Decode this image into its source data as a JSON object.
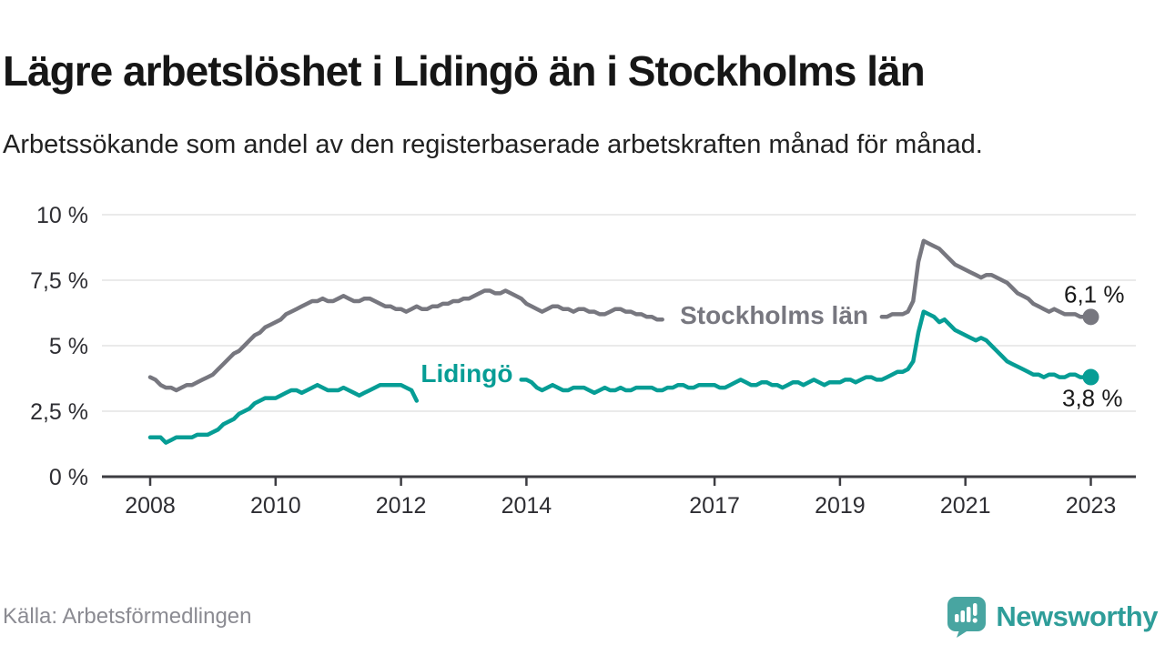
{
  "page": {
    "title": "Lägre arbetslöshet i Lidingö än i Stockholms län",
    "subtitle": "Arbetssökande som andel av den registerbaserade arbetskraften månad för månad.",
    "source": "Källa: Arbetsförmedlingen",
    "brand": "Newsworthy"
  },
  "colors": {
    "stockholm_line": "#77777f",
    "lidingo_line": "#069d95",
    "gridline": "#e3e3e3",
    "axis": "#3d3d42",
    "tick_text": "#2e2e33",
    "end_label_text": "#191919",
    "logo_teal": "#48a5a1",
    "logo_text_teal": "#2e9d99"
  },
  "chart_data": {
    "type": "line",
    "title": "Lägre arbetslöshet i Lidingö än i Stockholms län",
    "subtitle": "Arbetssökande som andel av den registerbaserade arbetskraften månad för månad.",
    "x_unit": "year-month",
    "x_start": 2008.0,
    "x_step": 0.0833333,
    "xlim": [
      2007.25,
      2023.75
    ],
    "ylim": [
      0,
      10
    ],
    "grid": true,
    "x_ticks": [
      2008,
      2010,
      2012,
      2014,
      2017,
      2019,
      2021,
      2023
    ],
    "x_tick_labels": [
      "2008",
      "2010",
      "2012",
      "2014",
      "2017",
      "2019",
      "2021",
      "2023"
    ],
    "y_ticks": [
      0,
      2.5,
      5,
      7.5,
      10
    ],
    "y_tick_labels": [
      "0 %",
      "2,5 %",
      "5 %",
      "7,5 %",
      "10 %"
    ],
    "series": [
      {
        "name": "Stockholms län",
        "color": "#77777f",
        "end_value_label": "6,1 %",
        "end_label_dx": 37,
        "end_label_dy": -16,
        "inline_label": {
          "text": "Stockholms län",
          "x": 2017.95,
          "y": 6.15
        },
        "label_gap": [
          2016.23,
          2019.6
        ],
        "values": [
          3.8,
          3.7,
          3.5,
          3.4,
          3.4,
          3.3,
          3.4,
          3.5,
          3.5,
          3.6,
          3.7,
          3.8,
          3.9,
          4.1,
          4.3,
          4.5,
          4.7,
          4.8,
          5.0,
          5.2,
          5.4,
          5.5,
          5.7,
          5.8,
          5.9,
          6.0,
          6.2,
          6.3,
          6.4,
          6.5,
          6.6,
          6.7,
          6.7,
          6.8,
          6.7,
          6.7,
          6.8,
          6.9,
          6.8,
          6.7,
          6.7,
          6.8,
          6.8,
          6.7,
          6.6,
          6.5,
          6.5,
          6.4,
          6.4,
          6.3,
          6.4,
          6.5,
          6.4,
          6.4,
          6.5,
          6.5,
          6.6,
          6.6,
          6.7,
          6.7,
          6.8,
          6.8,
          6.9,
          7.0,
          7.1,
          7.1,
          7.0,
          7.0,
          7.1,
          7.0,
          6.9,
          6.8,
          6.6,
          6.5,
          6.4,
          6.3,
          6.4,
          6.5,
          6.5,
          6.4,
          6.4,
          6.3,
          6.4,
          6.4,
          6.3,
          6.3,
          6.2,
          6.2,
          6.3,
          6.4,
          6.4,
          6.3,
          6.3,
          6.2,
          6.2,
          6.1,
          6.1,
          6.0,
          6.0,
          6.1,
          6.1,
          6.2,
          6.2,
          6.2,
          6.1,
          6.1,
          6.0,
          6.1,
          6.1,
          6.2,
          6.2,
          6.1,
          6.2,
          6.3,
          6.3,
          6.2,
          6.2,
          6.1,
          6.1,
          6.2,
          6.2,
          6.1,
          6.1,
          6.0,
          6.1,
          6.2,
          6.2,
          6.1,
          6.1,
          6.0,
          6.1,
          6.1,
          6.1,
          6.1,
          6.2,
          6.1,
          6.1,
          6.2,
          6.2,
          6.2,
          6.1,
          6.1,
          6.2,
          6.2,
          6.2,
          6.3,
          6.7,
          8.2,
          9.0,
          8.9,
          8.8,
          8.7,
          8.5,
          8.3,
          8.1,
          8.0,
          7.9,
          7.8,
          7.7,
          7.6,
          7.7,
          7.7,
          7.6,
          7.5,
          7.4,
          7.2,
          7.0,
          6.9,
          6.8,
          6.6,
          6.5,
          6.4,
          6.3,
          6.4,
          6.3,
          6.2,
          6.2,
          6.2,
          6.1,
          6.1,
          6.1
        ]
      },
      {
        "name": "Lidingö",
        "color": "#069d95",
        "end_value_label": "3,8 %",
        "end_label_dx": 35,
        "end_label_dy": 32,
        "inline_label": {
          "text": "Lidingö",
          "x": 2013.05,
          "y": 3.92
        },
        "label_gap": [
          2012.3,
          2013.88
        ],
        "values": [
          1.5,
          1.5,
          1.5,
          1.3,
          1.4,
          1.5,
          1.5,
          1.5,
          1.5,
          1.6,
          1.6,
          1.6,
          1.7,
          1.8,
          2.0,
          2.1,
          2.2,
          2.4,
          2.5,
          2.6,
          2.8,
          2.9,
          3.0,
          3.0,
          3.0,
          3.1,
          3.2,
          3.3,
          3.3,
          3.2,
          3.3,
          3.4,
          3.5,
          3.4,
          3.3,
          3.3,
          3.3,
          3.4,
          3.3,
          3.2,
          3.1,
          3.2,
          3.3,
          3.4,
          3.5,
          3.5,
          3.5,
          3.5,
          3.5,
          3.4,
          3.3,
          2.9,
          3.0,
          3.1,
          3.2,
          3.3,
          3.4,
          3.4,
          3.5,
          3.5,
          3.5,
          3.4,
          3.5,
          3.5,
          3.6,
          3.6,
          3.5,
          3.6,
          3.6,
          3.7,
          3.7,
          3.7,
          3.7,
          3.6,
          3.4,
          3.3,
          3.4,
          3.5,
          3.4,
          3.3,
          3.3,
          3.4,
          3.4,
          3.4,
          3.3,
          3.2,
          3.3,
          3.4,
          3.3,
          3.3,
          3.4,
          3.3,
          3.3,
          3.4,
          3.4,
          3.4,
          3.4,
          3.3,
          3.3,
          3.4,
          3.4,
          3.5,
          3.5,
          3.4,
          3.4,
          3.5,
          3.5,
          3.5,
          3.5,
          3.4,
          3.4,
          3.5,
          3.6,
          3.7,
          3.6,
          3.5,
          3.5,
          3.6,
          3.6,
          3.5,
          3.5,
          3.4,
          3.5,
          3.6,
          3.6,
          3.5,
          3.6,
          3.7,
          3.6,
          3.5,
          3.6,
          3.6,
          3.6,
          3.7,
          3.7,
          3.6,
          3.7,
          3.8,
          3.8,
          3.7,
          3.7,
          3.8,
          3.9,
          4.0,
          4.0,
          4.1,
          4.4,
          5.5,
          6.3,
          6.2,
          6.1,
          5.9,
          6.0,
          5.8,
          5.6,
          5.5,
          5.4,
          5.3,
          5.2,
          5.3,
          5.2,
          5.0,
          4.8,
          4.6,
          4.4,
          4.3,
          4.2,
          4.1,
          4.0,
          3.9,
          3.9,
          3.8,
          3.9,
          3.9,
          3.8,
          3.8,
          3.9,
          3.9,
          3.8,
          3.8,
          3.8
        ]
      }
    ],
    "legend_position": "inline-on-lines"
  }
}
